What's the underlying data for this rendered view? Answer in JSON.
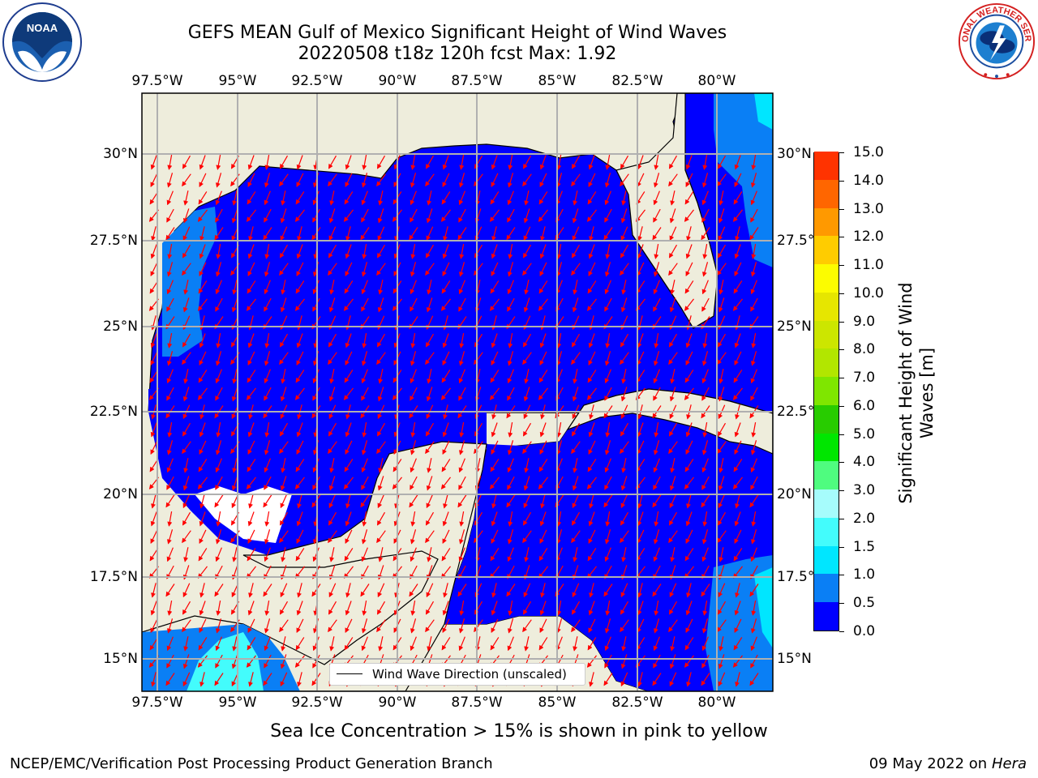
{
  "title": {
    "line1": "GEFS MEAN Gulf of Mexico Significant Height of Wind Waves",
    "line2": "20220508 t18z 120h fcst   Max: 1.92"
  },
  "map": {
    "lon_labels": [
      "97.5°W",
      "95°W",
      "92.5°W",
      "90°W",
      "87.5°W",
      "85°W",
      "82.5°W",
      "80°W"
    ],
    "lat_labels": [
      "30°N",
      "27.5°N",
      "25°N",
      "22.5°N",
      "20°N",
      "17.5°N",
      "15°N"
    ],
    "lon_range": [
      -98,
      -78.2
    ],
    "lat_range": [
      14,
      31.8
    ],
    "grid": true,
    "land_color": "#eeeddc",
    "ocean_color": "#0000ff",
    "arrow_color": "#ff0000",
    "wind_direction": "mostly south / south-southwest"
  },
  "legend": {
    "label": "Wind Wave Direction (unscaled)"
  },
  "colorbar": {
    "label": "Significant Height of Wind Waves [m]",
    "ticks": [
      "0.0",
      "0.5",
      "1.0",
      "1.5",
      "2.0",
      "3.0",
      "4.0",
      "5.0",
      "6.0",
      "7.0",
      "8.0",
      "9.0",
      "10.0",
      "11.0",
      "12.0",
      "13.0",
      "14.0",
      "15.0"
    ],
    "colors": [
      "#0000ff",
      "#0a7ff5",
      "#00e6ff",
      "#43fcfc",
      "#a6fcfc",
      "#4ffc7f",
      "#00e600",
      "#28cc00",
      "#7fe600",
      "#b2e600",
      "#cce600",
      "#e6e600",
      "#fcfc00",
      "#ffcc00",
      "#ff9900",
      "#ff6600",
      "#ff3300",
      "#ff0000"
    ]
  },
  "chart_data": {
    "type": "heatmap",
    "title": "GEFS MEAN Gulf of Mexico Significant Height of Wind Waves",
    "subtitle": "20220508 t18z 120h fcst   Max: 1.92",
    "xlabel": "",
    "ylabel": "",
    "max_value": 1.92,
    "value_range": [
      0,
      15
    ],
    "regions": [
      {
        "name": "Gulf of Mexico",
        "value_range_m": [
          0.0,
          0.5
        ]
      },
      {
        "name": "Western Gulf near Texas/Mexico coast",
        "value_range_m": [
          0.5,
          1.0
        ]
      },
      {
        "name": "Atlantic east of Florida",
        "value_range_m": [
          0.5,
          1.5
        ]
      },
      {
        "name": "Caribbean near Central America (south-west)",
        "value_range_m": [
          1.0,
          2.0
        ]
      },
      {
        "name": "Caribbean east side",
        "value_range_m": [
          0.5,
          1.0
        ]
      }
    ]
  },
  "footer": {
    "sea_ice": "Sea Ice Concentration > 15% is shown in pink to yellow",
    "left": "NCEP/EMC/Verification Post Processing Product Generation Branch",
    "right_date": "09 May 2022 on",
    "right_host": "Hera"
  },
  "logos": {
    "left": "noaa-logo",
    "right": "national-weather-service-logo"
  }
}
